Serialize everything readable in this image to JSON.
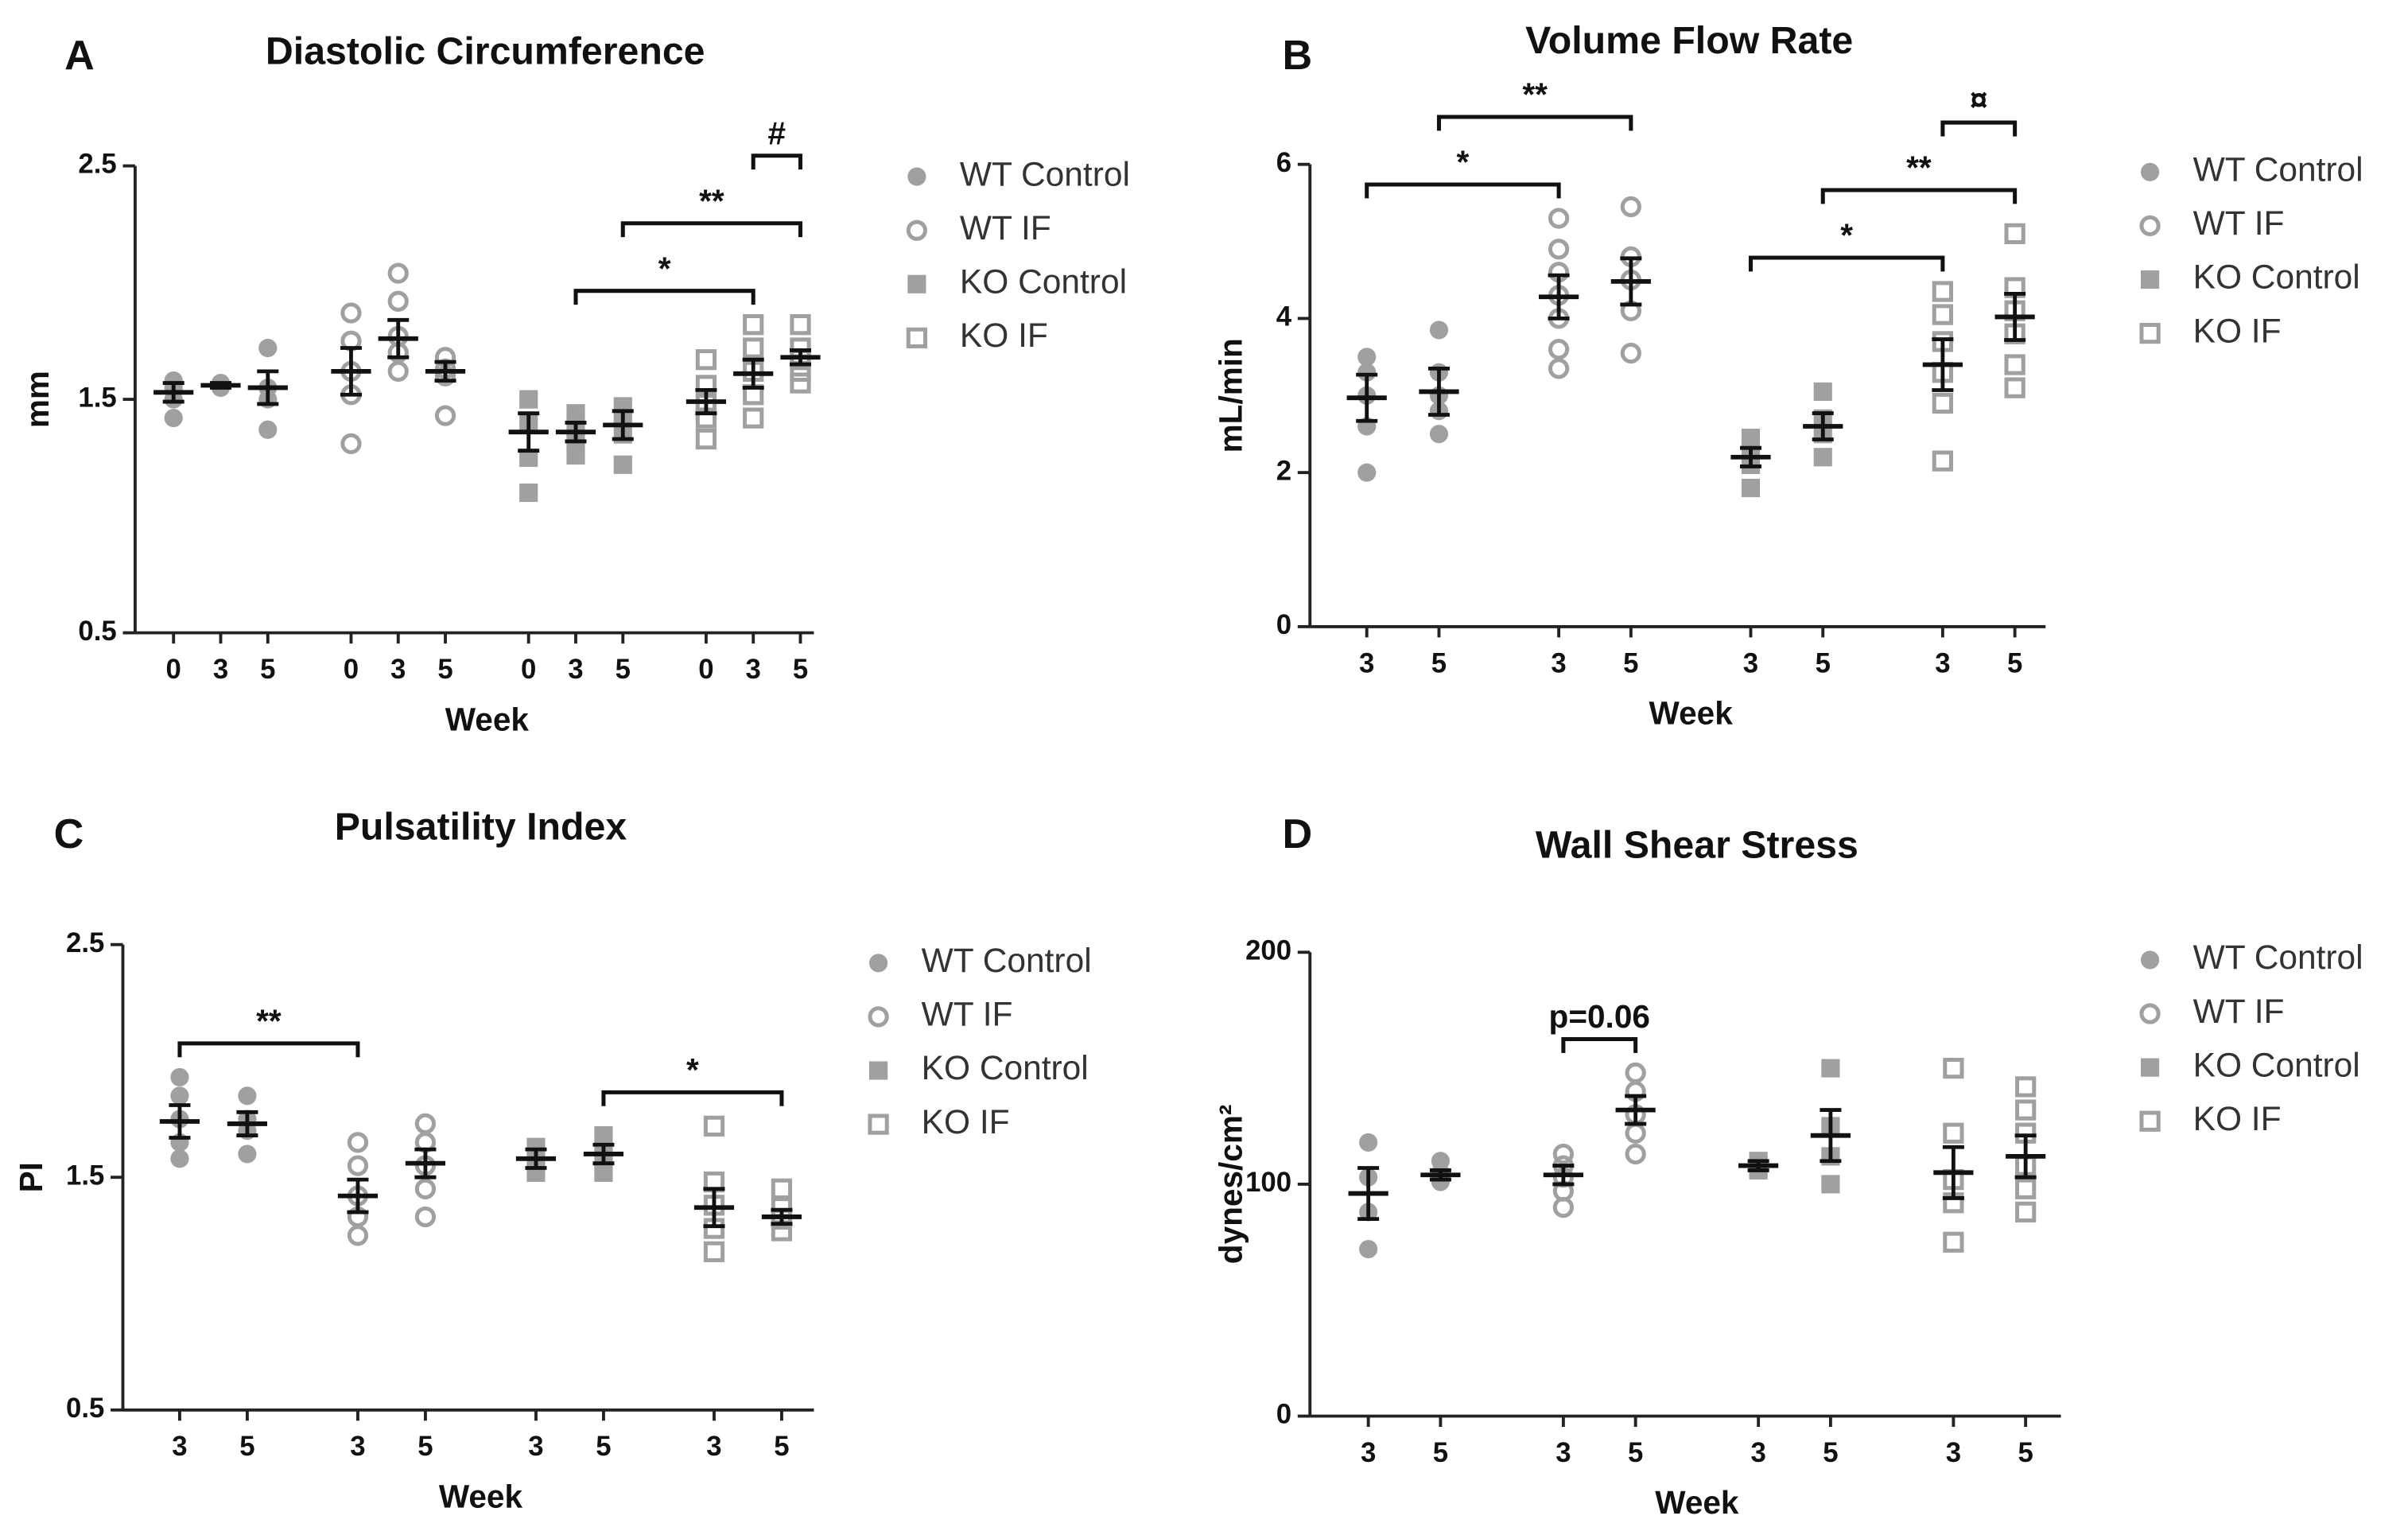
{
  "chart_data": [
    {
      "type": "scatter",
      "letter": "A",
      "title": "Diastolic Circumference",
      "y_label": "mm",
      "x_label": "Week",
      "ylim": [
        0.5,
        2.5
      ],
      "yticks": [
        0.5,
        1.5,
        2.5
      ],
      "color": "#a0a0a0",
      "mean_color": "#111111",
      "series": [
        {
          "name": "WT Control",
          "marker": "filled-circle",
          "groups": [
            {
              "week": "0",
              "points": [
                1.42,
                1.5,
                1.55,
                1.58
              ],
              "mean": 1.53,
              "sem": 0.04
            },
            {
              "week": "3",
              "points": [
                1.55,
                1.56,
                1.57
              ],
              "mean": 1.56,
              "sem": 0.01
            },
            {
              "week": "5",
              "points": [
                1.37,
                1.5,
                1.55,
                1.72
              ],
              "mean": 1.55,
              "sem": 0.07
            }
          ]
        },
        {
          "name": "WT IF",
          "marker": "open-circle",
          "groups": [
            {
              "week": "0",
              "points": [
                1.31,
                1.52,
                1.62,
                1.75,
                1.87
              ],
              "mean": 1.62,
              "sem": 0.1
            },
            {
              "week": "3",
              "points": [
                1.62,
                1.7,
                1.77,
                1.92,
                2.04
              ],
              "mean": 1.76,
              "sem": 0.08
            },
            {
              "week": "5",
              "points": [
                1.43,
                1.6,
                1.63,
                1.68
              ],
              "mean": 1.62,
              "sem": 0.04
            }
          ]
        },
        {
          "name": "KO Control",
          "marker": "filled-square",
          "groups": [
            {
              "week": "0",
              "points": [
                1.1,
                1.25,
                1.4,
                1.5
              ],
              "mean": 1.36,
              "sem": 0.08
            },
            {
              "week": "3",
              "points": [
                1.26,
                1.32,
                1.38,
                1.44
              ],
              "mean": 1.36,
              "sem": 0.04
            },
            {
              "week": "5",
              "points": [
                1.22,
                1.35,
                1.42,
                1.47
              ],
              "mean": 1.39,
              "sem": 0.06
            }
          ]
        },
        {
          "name": "KO IF",
          "marker": "open-square",
          "groups": [
            {
              "week": "0",
              "points": [
                1.33,
                1.42,
                1.48,
                1.56,
                1.67
              ],
              "mean": 1.49,
              "sem": 0.05
            },
            {
              "week": "3",
              "points": [
                1.42,
                1.52,
                1.62,
                1.72,
                1.82
              ],
              "mean": 1.61,
              "sem": 0.06
            },
            {
              "week": "5",
              "points": [
                1.57,
                1.62,
                1.67,
                1.72,
                1.82
              ],
              "mean": 1.68,
              "sem": 0.03
            }
          ]
        }
      ],
      "annotations": [
        {
          "label": "*",
          "from": 7,
          "to": 10
        },
        {
          "label": "**",
          "from": 8,
          "to": 11
        },
        {
          "label": "#",
          "from": 10,
          "to": 11
        }
      ]
    },
    {
      "type": "scatter",
      "letter": "B",
      "title": "Volume Flow Rate",
      "y_label": "mL/min",
      "x_label": "Week",
      "ylim": [
        0,
        6
      ],
      "yticks": [
        0,
        2,
        4,
        6
      ],
      "color": "#a0a0a0",
      "mean_color": "#111111",
      "series": [
        {
          "name": "WT Control",
          "marker": "filled-circle",
          "groups": [
            {
              "week": "3",
              "points": [
                2.0,
                2.6,
                3.0,
                3.3,
                3.5
              ],
              "mean": 2.97,
              "sem": 0.3
            },
            {
              "week": "5",
              "points": [
                2.5,
                2.8,
                3.0,
                3.3,
                3.85
              ],
              "mean": 3.05,
              "sem": 0.3
            }
          ]
        },
        {
          "name": "WT IF",
          "marker": "open-circle",
          "groups": [
            {
              "week": "3",
              "points": [
                3.35,
                3.6,
                4.0,
                4.3,
                4.6,
                4.9,
                5.3
              ],
              "mean": 4.28,
              "sem": 0.28
            },
            {
              "week": "5",
              "points": [
                3.55,
                4.1,
                4.5,
                4.8,
                5.45
              ],
              "mean": 4.48,
              "sem": 0.3
            }
          ]
        },
        {
          "name": "KO Control",
          "marker": "filled-square",
          "groups": [
            {
              "week": "3",
              "points": [
                1.8,
                2.1,
                2.3,
                2.45
              ],
              "mean": 2.2,
              "sem": 0.12
            },
            {
              "week": "5",
              "points": [
                2.2,
                2.5,
                2.7,
                3.05
              ],
              "mean": 2.6,
              "sem": 0.17
            }
          ]
        },
        {
          "name": "KO IF",
          "marker": "open-square",
          "groups": [
            {
              "week": "3",
              "points": [
                2.15,
                2.9,
                3.3,
                3.7,
                4.05,
                4.35
              ],
              "mean": 3.4,
              "sem": 0.33
            },
            {
              "week": "5",
              "points": [
                3.1,
                3.4,
                3.8,
                4.1,
                4.4,
                5.1
              ],
              "mean": 4.02,
              "sem": 0.3
            }
          ]
        }
      ],
      "annotations": [
        {
          "label": "*",
          "from": 0,
          "to": 2
        },
        {
          "label": "**",
          "from": 1,
          "to": 3
        },
        {
          "label": "*",
          "from": 4,
          "to": 6
        },
        {
          "label": "**",
          "from": 5,
          "to": 7
        },
        {
          "label": "¤",
          "from": 6,
          "to": 7
        }
      ]
    },
    {
      "type": "scatter",
      "letter": "C",
      "title": "Pulsatility Index",
      "y_label": "PI",
      "x_label": "Week",
      "ylim": [
        0.5,
        2.5
      ],
      "yticks": [
        0.5,
        1.5,
        2.5
      ],
      "color": "#a0a0a0",
      "mean_color": "#111111",
      "series": [
        {
          "name": "WT Control",
          "marker": "filled-circle",
          "groups": [
            {
              "week": "3",
              "points": [
                1.58,
                1.65,
                1.75,
                1.85,
                1.93
              ],
              "mean": 1.74,
              "sem": 0.07
            },
            {
              "week": "5",
              "points": [
                1.6,
                1.7,
                1.75,
                1.85
              ],
              "mean": 1.73,
              "sem": 0.05
            }
          ]
        },
        {
          "name": "WT IF",
          "marker": "open-circle",
          "groups": [
            {
              "week": "3",
              "points": [
                1.25,
                1.33,
                1.42,
                1.55,
                1.65
              ],
              "mean": 1.42,
              "sem": 0.07
            },
            {
              "week": "5",
              "points": [
                1.33,
                1.45,
                1.55,
                1.65,
                1.73
              ],
              "mean": 1.56,
              "sem": 0.06
            }
          ]
        },
        {
          "name": "KO Control",
          "marker": "filled-square",
          "groups": [
            {
              "week": "3",
              "points": [
                1.52,
                1.58,
                1.63
              ],
              "mean": 1.58,
              "sem": 0.04
            },
            {
              "week": "5",
              "points": [
                1.52,
                1.58,
                1.62,
                1.68
              ],
              "mean": 1.6,
              "sem": 0.04
            }
          ]
        },
        {
          "name": "KO IF",
          "marker": "open-square",
          "groups": [
            {
              "week": "3",
              "points": [
                1.18,
                1.28,
                1.38,
                1.48,
                1.72
              ],
              "mean": 1.37,
              "sem": 0.08
            },
            {
              "week": "5",
              "points": [
                1.27,
                1.32,
                1.37,
                1.45
              ],
              "mean": 1.33,
              "sem": 0.03
            }
          ]
        }
      ],
      "annotations": [
        {
          "label": "**",
          "from": 0,
          "to": 2
        },
        {
          "label": "*",
          "from": 5,
          "to": 7
        }
      ]
    },
    {
      "type": "scatter",
      "letter": "D",
      "title": "Wall Shear Stress",
      "y_label": "dynes/cm²",
      "x_label": "Week",
      "ylim": [
        0,
        200
      ],
      "yticks": [
        0,
        100,
        200
      ],
      "color": "#a0a0a0",
      "mean_color": "#111111",
      "series": [
        {
          "name": "WT Control",
          "marker": "filled-circle",
          "groups": [
            {
              "week": "3",
              "points": [
                72,
                88,
                103,
                118
              ],
              "mean": 96,
              "sem": 11
            },
            {
              "week": "5",
              "points": [
                101,
                103,
                105,
                110
              ],
              "mean": 104,
              "sem": 2
            }
          ]
        },
        {
          "name": "WT IF",
          "marker": "open-circle",
          "groups": [
            {
              "week": "3",
              "points": [
                90,
                97,
                103,
                108,
                113
              ],
              "mean": 104,
              "sem": 4
            },
            {
              "week": "5",
              "points": [
                113,
                122,
                130,
                140,
                148
              ],
              "mean": 132,
              "sem": 6
            }
          ]
        },
        {
          "name": "KO Control",
          "marker": "filled-square",
          "groups": [
            {
              "week": "3",
              "points": [
                106,
                108,
                110
              ],
              "mean": 108,
              "sem": 2
            },
            {
              "week": "5",
              "points": [
                100,
                112,
                125,
                150
              ],
              "mean": 121,
              "sem": 11
            }
          ]
        },
        {
          "name": "KO IF",
          "marker": "open-square",
          "groups": [
            {
              "week": "3",
              "points": [
                75,
                92,
                102,
                122,
                150
              ],
              "mean": 105,
              "sem": 11
            },
            {
              "week": "5",
              "points": [
                88,
                98,
                108,
                122,
                132,
                142
              ],
              "mean": 112,
              "sem": 9
            }
          ]
        }
      ],
      "annotations": [
        {
          "label": "p=0.06",
          "from": 2,
          "to": 3
        }
      ]
    }
  ]
}
